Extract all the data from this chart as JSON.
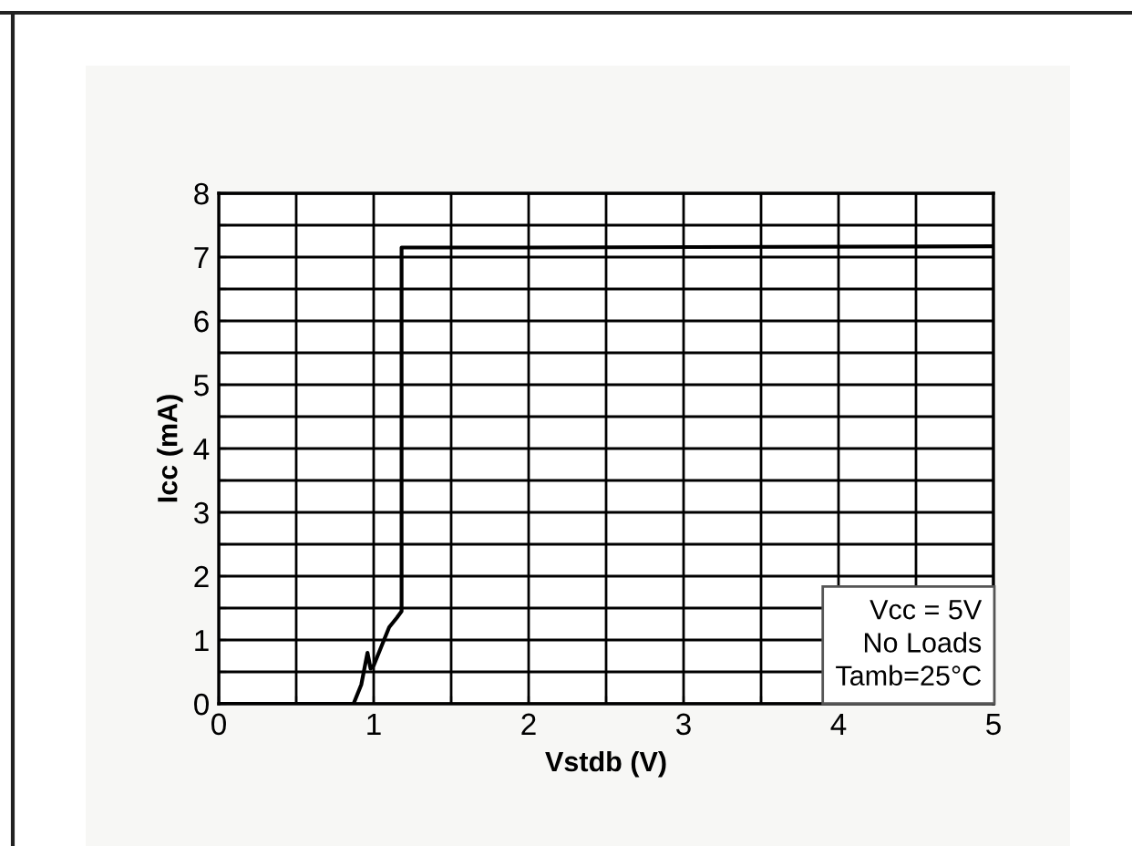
{
  "chart_data": {
    "type": "line",
    "xlabel": "Vstdb (V)",
    "ylabel": "Icc (mA)",
    "x": [
      0,
      0.87,
      0.92,
      0.96,
      0.98,
      1.0,
      1.05,
      1.1,
      1.15,
      1.18,
      1.18,
      2,
      5
    ],
    "series": [
      {
        "color": "#000000",
        "values": [
          0,
          0,
          0.3,
          0.8,
          0.55,
          0.6,
          0.9,
          1.2,
          1.35,
          1.45,
          7.15,
          7.15,
          7.17
        ]
      }
    ],
    "xlim": [
      0,
      5
    ],
    "ylim": [
      0,
      8
    ],
    "xticks": [
      0,
      {
        "value": 0.5,
        "label": null
      },
      1,
      {
        "value": 1.5,
        "label": null
      },
      2,
      {
        "value": 2.5,
        "label": null
      },
      3,
      {
        "value": 3.5,
        "label": null
      },
      4,
      {
        "value": 4.5,
        "label": null
      },
      5
    ],
    "yticks": [
      0,
      {
        "value": 0.5,
        "label": null
      },
      1,
      {
        "value": 1.5,
        "label": null
      },
      2,
      {
        "value": 2.5,
        "label": null
      },
      3,
      {
        "value": 3.5,
        "label": null
      },
      4,
      {
        "value": 4.5,
        "label": null
      },
      5,
      {
        "value": 5.5,
        "label": null
      },
      6,
      {
        "value": 6.5,
        "label": null
      },
      7,
      {
        "value": 7.5,
        "label": null
      },
      8
    ],
    "grid": true,
    "marker": "none",
    "line_style": "solid",
    "legend": false,
    "annotations": [
      "Vcc = 5V\nNo Loads\nTamb=25°C"
    ]
  }
}
